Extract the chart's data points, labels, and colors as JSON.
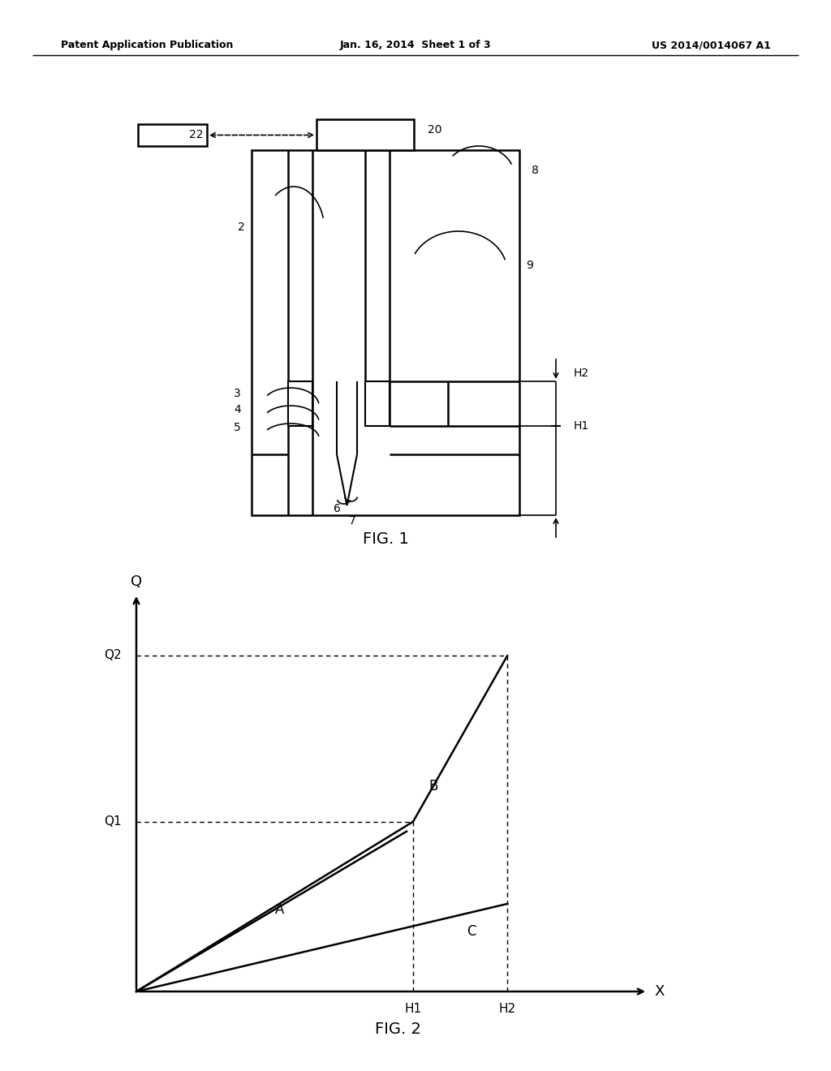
{
  "bg_color": "#ffffff",
  "line_color": "#000000",
  "header_left": "Patent Application Publication",
  "header_center": "Jan. 16, 2014  Sheet 1 of 3",
  "header_right": "US 2014/0014067 A1",
  "fig1_label": "FIG. 1",
  "fig2_label": "FIG. 2"
}
